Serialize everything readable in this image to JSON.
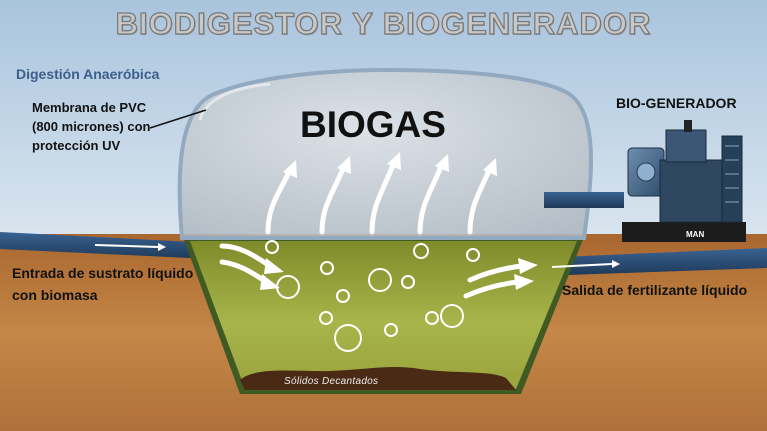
{
  "title": "BIODIGESTOR Y BIOGENERADOR",
  "subtitle": "Digestión Anaeróbica",
  "membrane_label_lines": [
    "Membrana de PVC",
    "(800 micrones) con",
    "protección UV"
  ],
  "biogas_label": "BIOGAS",
  "generator_label": "BIO-GENERADOR",
  "generator_brand": "MAN",
  "inlet_label_lines": [
    "Entrada de sustrato líquido",
    "con biomasa"
  ],
  "outlet_label": "Salida de fertilizante líquido",
  "solids_label": "Sólidos Decantados",
  "colors": {
    "sky_top": "#a9c4dd",
    "sky_bottom": "#d4e2ee",
    "soil": "#b8763e",
    "soil_dark": "#9a5f30",
    "slurry": "#a2ad3c",
    "dome": "#c4c9cf",
    "pipe": "#27476b",
    "sediment": "#4a2a14"
  },
  "icons": {
    "gas_flow": "upward-curved-arrow-icon",
    "liquid_flow": "right-arrow-icon",
    "bubbles": "bubble-icon",
    "generator": "generator-icon"
  }
}
